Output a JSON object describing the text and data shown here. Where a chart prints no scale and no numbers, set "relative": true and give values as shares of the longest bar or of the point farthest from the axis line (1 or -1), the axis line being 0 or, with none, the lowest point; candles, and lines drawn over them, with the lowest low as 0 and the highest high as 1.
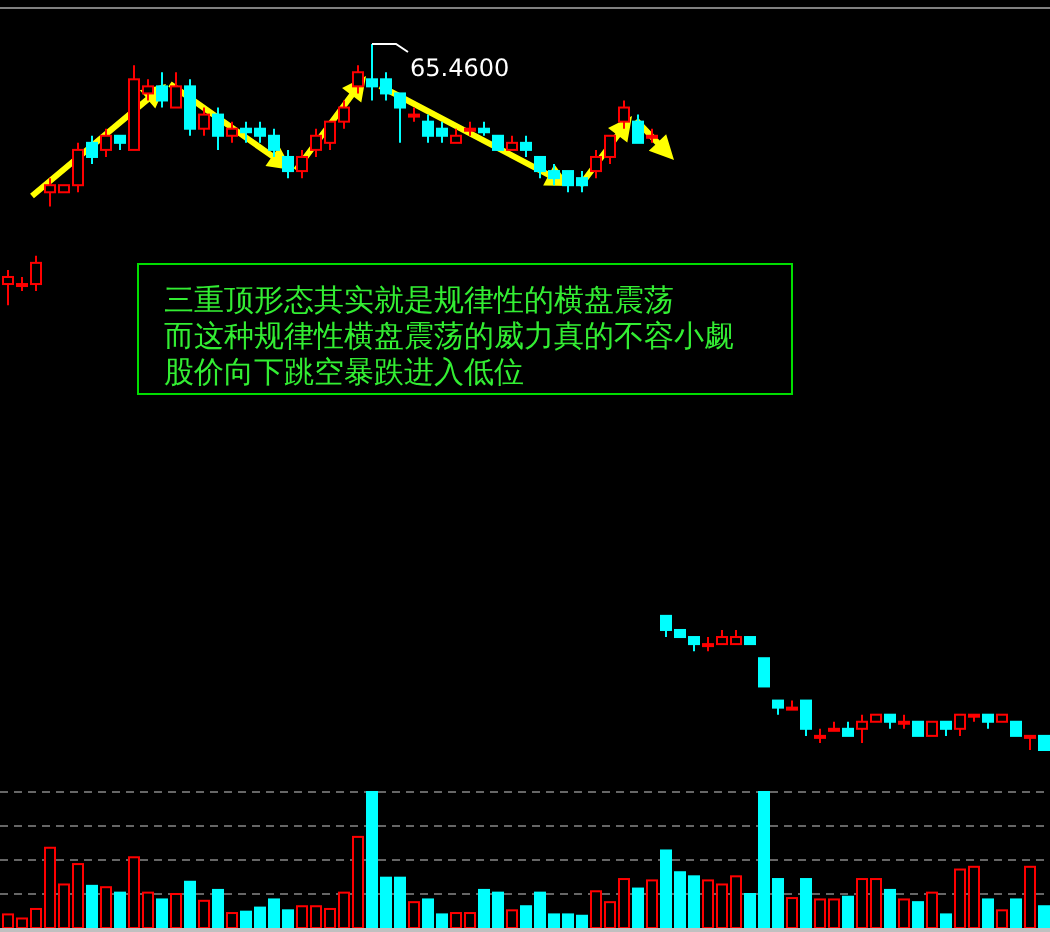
{
  "chart_data": [
    {
      "type": "candlestick",
      "relative": true,
      "categories": [
        null,
        null,
        null,
        null,
        null,
        null,
        null,
        null,
        null,
        null,
        null,
        null,
        null,
        null,
        null,
        null,
        null,
        null,
        null,
        null,
        null,
        null,
        null,
        null,
        null,
        null,
        null,
        null,
        null,
        null,
        null,
        null,
        null,
        null,
        null,
        null,
        null,
        null,
        null,
        null,
        null,
        null,
        null,
        null,
        null,
        null,
        null,
        null,
        null,
        null,
        null,
        null,
        null,
        null,
        null,
        null,
        null,
        null,
        null,
        null,
        null,
        null,
        null,
        null,
        null,
        null,
        null,
        null,
        null,
        null,
        null,
        null,
        null,
        null,
        null
      ],
      "ohlc": [
        [
          0.66,
          0.68,
          0.63,
          0.67
        ],
        [
          0.66,
          0.67,
          0.65,
          0.66
        ],
        [
          0.66,
          0.7,
          0.65,
          0.69
        ],
        [
          0.79,
          0.81,
          0.77,
          0.8
        ],
        [
          0.79,
          0.8,
          0.79,
          0.8
        ],
        [
          0.8,
          0.86,
          0.79,
          0.85
        ],
        [
          0.86,
          0.87,
          0.83,
          0.84
        ],
        [
          0.85,
          0.88,
          0.84,
          0.87
        ],
        [
          0.87,
          0.87,
          0.85,
          0.86
        ],
        [
          0.85,
          0.97,
          0.85,
          0.95
        ],
        [
          0.93,
          0.95,
          0.92,
          0.94
        ],
        [
          0.94,
          0.96,
          0.91,
          0.92
        ],
        [
          0.91,
          0.96,
          0.91,
          0.94
        ],
        [
          0.94,
          0.95,
          0.87,
          0.88
        ],
        [
          0.88,
          0.91,
          0.87,
          0.9
        ],
        [
          0.9,
          0.91,
          0.85,
          0.87
        ],
        [
          0.87,
          0.89,
          0.86,
          0.88
        ],
        [
          0.88,
          0.89,
          0.86,
          0.875
        ],
        [
          0.88,
          0.89,
          0.86,
          0.87
        ],
        [
          0.87,
          0.88,
          0.84,
          0.85
        ],
        [
          0.84,
          0.85,
          0.81,
          0.82
        ],
        [
          0.82,
          0.85,
          0.81,
          0.84
        ],
        [
          0.85,
          0.88,
          0.84,
          0.87
        ],
        [
          0.86,
          0.89,
          0.85,
          0.89
        ],
        [
          0.89,
          0.92,
          0.88,
          0.91
        ],
        [
          0.94,
          0.97,
          0.93,
          0.96
        ],
        [
          0.95,
          1.0,
          0.92,
          0.94
        ],
        [
          0.95,
          0.96,
          0.92,
          0.93
        ],
        [
          0.93,
          0.93,
          0.86,
          0.91
        ],
        [
          0.9,
          0.91,
          0.89,
          0.9
        ],
        [
          0.89,
          0.9,
          0.86,
          0.87
        ],
        [
          0.88,
          0.89,
          0.86,
          0.87
        ],
        [
          0.86,
          0.88,
          0.86,
          0.87
        ],
        [
          0.88,
          0.89,
          0.87,
          0.88
        ],
        [
          0.88,
          0.89,
          0.87,
          0.875
        ],
        [
          0.87,
          0.87,
          0.85,
          0.85
        ],
        [
          0.85,
          0.87,
          0.85,
          0.86
        ],
        [
          0.86,
          0.87,
          0.84,
          0.85
        ],
        [
          0.84,
          0.84,
          0.81,
          0.82
        ],
        [
          0.82,
          0.83,
          0.8,
          0.81
        ],
        [
          0.82,
          0.82,
          0.79,
          0.8
        ],
        [
          0.81,
          0.82,
          0.79,
          0.8
        ],
        [
          0.82,
          0.85,
          0.81,
          0.84
        ],
        [
          0.84,
          0.87,
          0.83,
          0.87
        ],
        [
          0.89,
          0.92,
          0.88,
          0.91
        ],
        [
          0.89,
          0.9,
          0.86,
          0.86
        ],
        [
          0.87,
          0.88,
          0.86,
          0.87
        ],
        [
          0.19,
          0.19,
          0.16,
          0.17
        ],
        [
          0.17,
          0.17,
          0.16,
          0.16
        ],
        [
          0.16,
          0.16,
          0.14,
          0.15
        ],
        [
          0.15,
          0.16,
          0.14,
          0.15
        ],
        [
          0.15,
          0.17,
          0.15,
          0.16
        ],
        [
          0.15,
          0.17,
          0.15,
          0.16
        ],
        [
          0.16,
          0.16,
          0.15,
          0.15
        ],
        [
          0.13,
          0.13,
          0.09,
          0.09
        ],
        [
          0.07,
          0.07,
          0.05,
          0.06
        ],
        [
          0.06,
          0.07,
          0.06,
          0.06
        ],
        [
          0.07,
          0.07,
          0.02,
          0.03
        ],
        [
          0.02,
          0.03,
          0.01,
          0.02
        ],
        [
          0.03,
          0.04,
          0.03,
          0.03
        ],
        [
          0.03,
          0.04,
          0.02,
          0.02
        ],
        [
          0.03,
          0.05,
          0.01,
          0.04
        ],
        [
          0.04,
          0.05,
          0.04,
          0.05
        ],
        [
          0.05,
          0.05,
          0.03,
          0.04
        ],
        [
          0.04,
          0.05,
          0.03,
          0.04
        ],
        [
          0.04,
          0.04,
          0.02,
          0.02
        ],
        [
          0.02,
          0.04,
          0.02,
          0.04
        ],
        [
          0.04,
          0.04,
          0.02,
          0.03
        ],
        [
          0.03,
          0.05,
          0.02,
          0.05
        ],
        [
          0.05,
          0.05,
          0.04,
          0.05
        ],
        [
          0.05,
          0.05,
          0.03,
          0.04
        ],
        [
          0.04,
          0.05,
          0.04,
          0.05
        ],
        [
          0.04,
          0.04,
          0.02,
          0.02
        ],
        [
          0.02,
          0.02,
          0.0,
          0.02
        ],
        [
          0.02,
          0.02,
          0.0,
          0.0
        ]
      ],
      "colors": [
        "#ff0000",
        "#ff0000",
        "#ff0000",
        "#ff0000",
        "#ff0000",
        "#ff0000",
        "#00ffff",
        "#ff0000",
        "#00ffff",
        "#ff0000",
        "#ff0000",
        "#00ffff",
        "#ff0000",
        "#00ffff",
        "#ff0000",
        "#00ffff",
        "#ff0000",
        "#00ffff",
        "#00ffff",
        "#00ffff",
        "#00ffff",
        "#ff0000",
        "#ff0000",
        "#ff0000",
        "#ff0000",
        "#ff0000",
        "#00ffff",
        "#00ffff",
        "#00ffff",
        "#ff0000",
        "#00ffff",
        "#00ffff",
        "#ff0000",
        "#ff0000",
        "#00ffff",
        "#00ffff",
        "#ff0000",
        "#00ffff",
        "#00ffff",
        "#00ffff",
        "#00ffff",
        "#00ffff",
        "#ff0000",
        "#ff0000",
        "#ff0000",
        "#00ffff",
        "#ff0000",
        "#00ffff",
        "#00ffff",
        "#00ffff",
        "#ff0000",
        "#ff0000",
        "#ff0000",
        "#00ffff",
        "#00ffff",
        "#00ffff",
        "#ff0000",
        "#00ffff",
        "#ff0000",
        "#ff0000",
        "#00ffff",
        "#ff0000",
        "#ff0000",
        "#00ffff",
        "#ff0000",
        "#00ffff",
        "#ff0000",
        "#00ffff",
        "#ff0000",
        "#ff0000",
        "#00ffff",
        "#ff0000",
        "#00ffff",
        "#ff0000",
        "#00ffff"
      ],
      "annotations": [
        {
          "text": "65.4600"
        },
        "三重顶形态其实就是规律性的横盘震荡",
        "而这种规律性横盘震荡的威力真的不容小觑",
        "股价向下跳空暴跌进入低位"
      ]
    },
    {
      "type": "bar",
      "relative": true,
      "grid": true,
      "categories": [
        null,
        null,
        null,
        null,
        null,
        null,
        null,
        null,
        null,
        null,
        null,
        null,
        null,
        null,
        null,
        null,
        null,
        null,
        null,
        null,
        null,
        null,
        null,
        null,
        null,
        null,
        null,
        null,
        null,
        null,
        null,
        null,
        null,
        null,
        null,
        null,
        null,
        null,
        null,
        null,
        null,
        null,
        null,
        null,
        null,
        null,
        null,
        null,
        null,
        null,
        null,
        null,
        null,
        null,
        null,
        null,
        null,
        null,
        null,
        null,
        null,
        null,
        null,
        null,
        null,
        null,
        null,
        null,
        null,
        null,
        null,
        null,
        null,
        null,
        null
      ],
      "values": [
        0.1,
        0.07,
        0.14,
        0.59,
        0.32,
        0.47,
        0.31,
        0.3,
        0.26,
        0.52,
        0.26,
        0.21,
        0.25,
        0.34,
        0.2,
        0.28,
        0.11,
        0.12,
        0.15,
        0.21,
        0.13,
        0.16,
        0.16,
        0.14,
        0.26,
        0.67,
        1.0,
        0.37,
        0.37,
        0.19,
        0.21,
        0.1,
        0.11,
        0.11,
        0.28,
        0.26,
        0.13,
        0.16,
        0.26,
        0.1,
        0.1,
        0.09,
        0.27,
        0.19,
        0.36,
        0.29,
        0.35,
        0.57,
        0.41,
        0.38,
        0.35,
        0.32,
        0.38,
        0.25,
        1.0,
        0.36,
        0.22,
        0.36,
        0.21,
        0.21,
        0.23,
        0.36,
        0.36,
        0.28,
        0.21,
        0.19,
        0.26,
        0.1,
        0.43,
        0.45,
        0.21,
        0.13,
        0.21,
        0.45,
        0.16
      ],
      "colors": [
        "#ff0000",
        "#ff0000",
        "#ff0000",
        "#ff0000",
        "#ff0000",
        "#ff0000",
        "#00ffff",
        "#ff0000",
        "#00ffff",
        "#ff0000",
        "#ff0000",
        "#00ffff",
        "#ff0000",
        "#00ffff",
        "#ff0000",
        "#00ffff",
        "#ff0000",
        "#00ffff",
        "#00ffff",
        "#00ffff",
        "#00ffff",
        "#ff0000",
        "#ff0000",
        "#ff0000",
        "#ff0000",
        "#ff0000",
        "#00ffff",
        "#00ffff",
        "#00ffff",
        "#ff0000",
        "#00ffff",
        "#00ffff",
        "#ff0000",
        "#ff0000",
        "#00ffff",
        "#00ffff",
        "#ff0000",
        "#00ffff",
        "#00ffff",
        "#00ffff",
        "#00ffff",
        "#00ffff",
        "#ff0000",
        "#ff0000",
        "#ff0000",
        "#00ffff",
        "#ff0000",
        "#00ffff",
        "#00ffff",
        "#00ffff",
        "#ff0000",
        "#ff0000",
        "#ff0000",
        "#00ffff",
        "#00ffff",
        "#00ffff",
        "#ff0000",
        "#00ffff",
        "#ff0000",
        "#ff0000",
        "#00ffff",
        "#ff0000",
        "#ff0000",
        "#00ffff",
        "#ff0000",
        "#00ffff",
        "#ff0000",
        "#00ffff",
        "#ff0000",
        "#ff0000",
        "#00ffff",
        "#ff0000",
        "#00ffff",
        "#ff0000",
        "#00ffff"
      ]
    }
  ]
}
